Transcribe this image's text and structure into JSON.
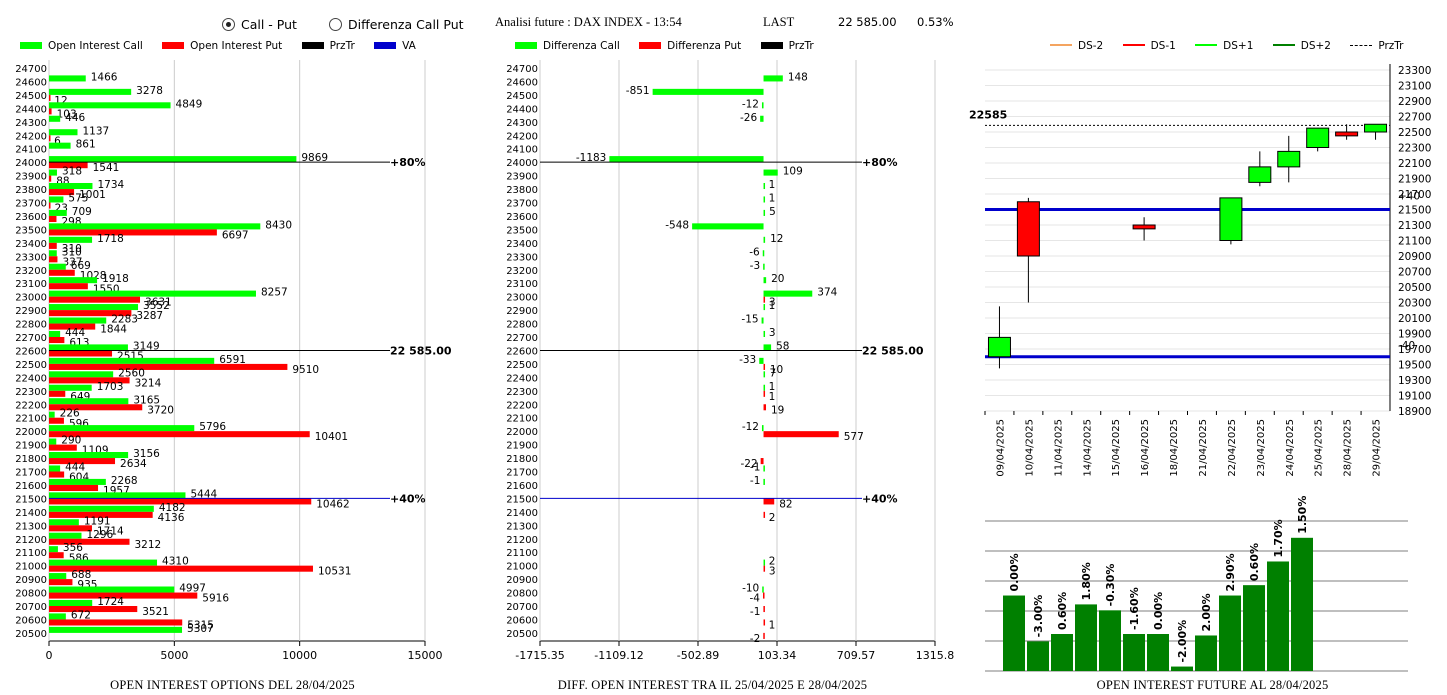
{
  "controls": {
    "radio_call_put": "Call - Put",
    "radio_diff": "Differenza Call Put",
    "selected": "call_put"
  },
  "header": {
    "title": "Analisi future : DAX INDEX - 13:54",
    "last_label": "LAST",
    "last_value": "22 585.00",
    "change": "0.53%"
  },
  "colors": {
    "green": "#00ff00",
    "red": "#ff0000",
    "black": "#000000",
    "blue": "#0000cc",
    "darkgreen": "#008000",
    "orange": "#f4a460"
  },
  "chart_data": [
    {
      "type": "bar",
      "orientation": "horizontal",
      "title": "OPEN INTEREST OPTIONS DEL 28/04/2025",
      "legend": [
        "Open Interest Call",
        "Open Interest Put",
        "PrzTr",
        "VA"
      ],
      "strikes": [
        24700,
        24600,
        24500,
        24400,
        24300,
        24200,
        24100,
        24000,
        23900,
        23800,
        23700,
        23600,
        23500,
        23400,
        23300,
        23200,
        23100,
        23000,
        22900,
        22800,
        22700,
        22600,
        22500,
        22400,
        22300,
        22200,
        22100,
        22000,
        21900,
        21800,
        21700,
        21600,
        21500,
        21400,
        21300,
        21200,
        21100,
        21000,
        20900,
        20800,
        20700,
        20600,
        20500
      ],
      "call": [
        0,
        1466,
        3278,
        4849,
        446,
        1137,
        861,
        9869,
        318,
        1734,
        575,
        709,
        8430,
        1718,
        310,
        669,
        1918,
        8257,
        3552,
        2283,
        444,
        3149,
        6591,
        2560,
        1703,
        3165,
        226,
        5796,
        290,
        3156,
        444,
        2268,
        5444,
        4182,
        1191,
        1296,
        356,
        4310,
        688,
        4997,
        1724,
        672,
        5307
      ],
      "put": [
        0,
        0,
        12,
        103,
        0,
        6,
        0,
        1541,
        88,
        1001,
        23,
        298,
        6697,
        310,
        337,
        1028,
        1550,
        3631,
        3287,
        1844,
        613,
        2515,
        9510,
        3214,
        649,
        3720,
        596,
        10401,
        1109,
        2634,
        604,
        1957,
        10462,
        4136,
        1714,
        3212,
        586,
        10531,
        935,
        5916,
        3521,
        5315,
        0
      ],
      "xlim": [
        0,
        15000
      ],
      "xticks": [
        "0",
        "5000",
        "10000",
        "15000"
      ],
      "markers": [
        {
          "strike": 24000,
          "label": "+80%"
        },
        {
          "strike": 22600,
          "label": "22 585.00"
        },
        {
          "strike": 21500,
          "label": "+40%"
        }
      ]
    },
    {
      "type": "bar",
      "orientation": "horizontal",
      "title": "DIFF. OPEN INTEREST TRA IL 25/04/2025 E 28/04/2025",
      "legend": [
        "Differenza Call",
        "Differenza Put",
        "PrzTr"
      ],
      "strikes": [
        24700,
        24600,
        24500,
        24400,
        24300,
        24200,
        24100,
        24000,
        23900,
        23800,
        23700,
        23600,
        23500,
        23400,
        23300,
        23200,
        23100,
        23000,
        22900,
        22800,
        22700,
        22600,
        22500,
        22400,
        22300,
        22200,
        22100,
        22000,
        21900,
        21800,
        21700,
        21600,
        21500,
        21400,
        21300,
        21200,
        21100,
        21000,
        20900,
        20800,
        20700,
        20600,
        20500
      ],
      "call": [
        0,
        148,
        -851,
        -12,
        -26,
        0,
        0,
        -1183,
        109,
        1,
        1,
        5,
        -548,
        12,
        -6,
        -3,
        20,
        374,
        1,
        -15,
        3,
        58,
        -33,
        7,
        1,
        0,
        0,
        -12,
        0,
        0,
        -1,
        -1,
        0,
        0,
        0,
        0,
        0,
        2,
        0,
        -10,
        0,
        0,
        0
      ],
      "put": [
        0,
        0,
        0,
        0,
        0,
        0,
        0,
        0,
        0,
        0,
        0,
        0,
        0,
        0,
        0,
        0,
        0,
        3,
        0,
        0,
        0,
        0,
        10,
        0,
        1,
        19,
        0,
        577,
        0,
        -22,
        0,
        0,
        82,
        2,
        0,
        0,
        0,
        3,
        0,
        -4,
        -1,
        1,
        -2
      ],
      "xlim": [
        -1715.35,
        1315.8
      ],
      "xticks": [
        "-1715.35",
        "-1109.12",
        "-502.89",
        "103.34",
        "709.57",
        "1315.8"
      ],
      "markers": [
        {
          "strike": 24000,
          "label": "+80%"
        },
        {
          "strike": 22600,
          "label": "22 585.00"
        },
        {
          "strike": 21500,
          "label": "+40%"
        }
      ]
    },
    {
      "type": "candlestick",
      "legend": [
        "DS-2",
        "DS-1",
        "DS+1",
        "DS+2",
        "PrzTr"
      ],
      "dates": [
        "09/04/2025",
        "10/04/2025",
        "11/04/2025",
        "14/04/2025",
        "15/04/2025",
        "16/04/2025",
        "18/04/2025",
        "21/04/2025",
        "22/04/2025",
        "23/04/2025",
        "24/04/2025",
        "25/04/2025",
        "28/04/2025",
        "29/04/2025"
      ],
      "ohlc": [
        [
          19600,
          20250,
          19450,
          19850
        ],
        [
          21600,
          21650,
          20300,
          20900
        ],
        null,
        null,
        null,
        [
          21300,
          21400,
          21100,
          21250
        ],
        null,
        null,
        [
          21100,
          21650,
          21050,
          21650
        ],
        [
          21850,
          22250,
          21800,
          22050
        ],
        [
          22050,
          22450,
          21850,
          22250
        ],
        [
          22300,
          22550,
          22250,
          22550
        ],
        [
          22500,
          22600,
          22400,
          22450
        ],
        [
          22500,
          22600,
          22400,
          22600
        ]
      ],
      "ylim": [
        18900,
        23300
      ],
      "yticks": [
        23300,
        23100,
        22900,
        22700,
        22500,
        22300,
        22100,
        21900,
        21700,
        21500,
        21300,
        21100,
        20900,
        20700,
        20500,
        20300,
        20100,
        19900,
        19700,
        19500,
        19300,
        19100,
        18900
      ],
      "last_label": "22585",
      "last": 22585,
      "blue_levels": [
        21500,
        19600
      ],
      "annotations": [
        "+40",
        "-40"
      ]
    },
    {
      "type": "bar",
      "title": "OPEN INTEREST FUTURE AL 28/04/2025",
      "labels": [
        "0.00%",
        "-3.00%",
        "0.60%",
        "1.80%",
        "-0.30%",
        "-1.60%",
        "0.00%",
        "-2.00%",
        "2.00%",
        "2.90%",
        "0.60%",
        "1.70%",
        "1.50%"
      ],
      "values": [
        25.5,
        10,
        12.5,
        22.5,
        20.5,
        12.5,
        12.5,
        1.5,
        12,
        25.5,
        29,
        37,
        45
      ],
      "ymax": 50
    }
  ]
}
